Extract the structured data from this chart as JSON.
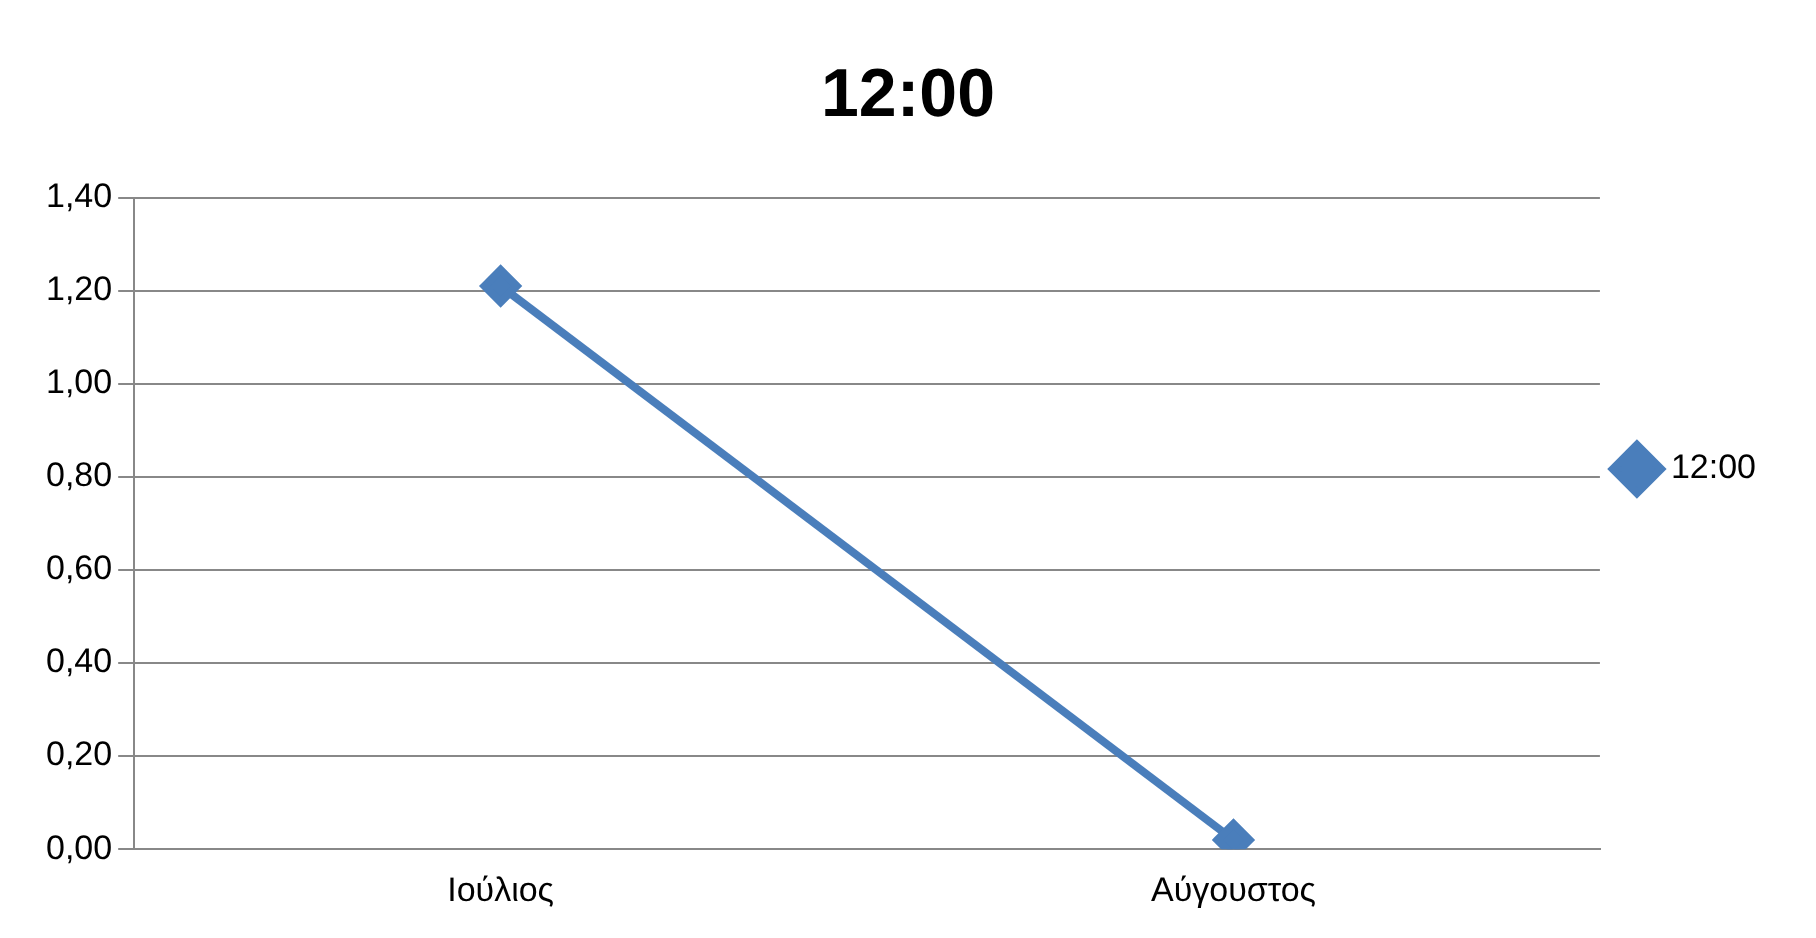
{
  "chart_data": {
    "type": "line",
    "title": "12:00",
    "categories": [
      "Ιούλιος",
      "Αύγουστος"
    ],
    "series": [
      {
        "name": "12:00",
        "color": "#4a7ebb",
        "values": [
          1.21,
          0.02
        ]
      }
    ],
    "ylim": [
      0,
      1.4
    ],
    "yticks": [
      {
        "value": 0,
        "label": "0,00"
      },
      {
        "value": 0.2,
        "label": "0,20"
      },
      {
        "value": 0.4,
        "label": "0,40"
      },
      {
        "value": 0.6,
        "label": "0,60"
      },
      {
        "value": 0.8,
        "label": "0,80"
      },
      {
        "value": 1,
        "label": "1,00"
      },
      {
        "value": 1.2,
        "label": "1,20"
      },
      {
        "value": 1.4,
        "label": "1,40"
      }
    ],
    "grid": "y",
    "legend": "right",
    "marker": "diamond",
    "line_style": "solid"
  }
}
